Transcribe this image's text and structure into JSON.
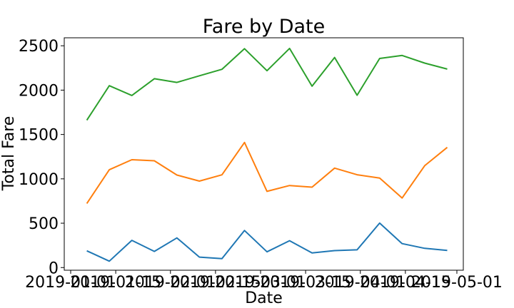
{
  "chart_data": {
    "type": "line",
    "title": "Fare by Date",
    "xlabel": "Date",
    "ylabel": "Total Fare",
    "xlim": [
      "2018-12-30",
      "2019-05-03"
    ],
    "ylim": [
      -30,
      2590
    ],
    "x_ticks": [
      "2019-01-01",
      "2019-01-15",
      "2019-02-01",
      "2019-02-15",
      "2019-03-01",
      "2019-03-15",
      "2019-04-01",
      "2019-04-15",
      "2019-05-01"
    ],
    "y_ticks": [
      0,
      500,
      1000,
      1500,
      2000,
      2500
    ],
    "grid": false,
    "legend": "none",
    "x": [
      "2019-01-06",
      "2019-01-13",
      "2019-01-20",
      "2019-01-27",
      "2019-02-03",
      "2019-02-10",
      "2019-02-17",
      "2019-02-24",
      "2019-03-03",
      "2019-03-10",
      "2019-03-17",
      "2019-03-24",
      "2019-03-31",
      "2019-04-07",
      "2019-04-14",
      "2019-04-21",
      "2019-04-28"
    ],
    "series": [
      {
        "color": "#1f77b4",
        "values": [
          189,
          72,
          307,
          182,
          334,
          118,
          100,
          418,
          177,
          303,
          165,
          191,
          200,
          501,
          270,
          217,
          193
        ]
      },
      {
        "color": "#ff7f0e",
        "values": [
          722,
          1102,
          1216,
          1204,
          1043,
          975,
          1045,
          1410,
          859,
          925,
          906,
          1121,
          1046,
          1009,
          784,
          1148,
          1355
        ]
      },
      {
        "color": "#2ca02c",
        "values": [
          1661,
          2050,
          1940,
          2129,
          2087,
          2162,
          2235,
          2467,
          2219,
          2470,
          2044,
          2368,
          1942,
          2357,
          2391,
          2305,
          2237
        ]
      }
    ]
  }
}
